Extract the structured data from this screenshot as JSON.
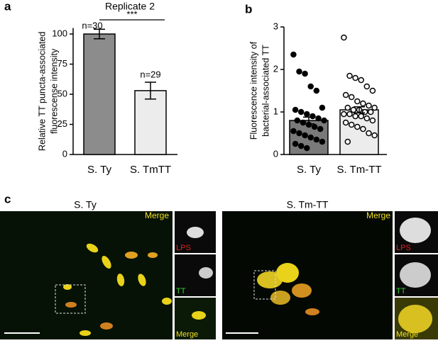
{
  "panel_labels": [
    "a",
    "b",
    "c"
  ],
  "chart_data": [
    {
      "type": "bar",
      "categories": [
        "S. Ty",
        "S. TmTT"
      ],
      "values": [
        100,
        53
      ],
      "errors": [
        4,
        7
      ],
      "colors": [
        "#8c8c8c",
        "#ececec"
      ],
      "ylim": [
        0,
        105
      ],
      "yticks": [
        0,
        25,
        50,
        75,
        100
      ],
      "ylabel_lines": [
        "Relative TT puncta-associated",
        "fluorescense intensity"
      ],
      "annotations": {
        "title": "Replicate 2",
        "significance": "***",
        "n_labels": [
          "n=30",
          "n=29"
        ]
      }
    },
    {
      "type": "bar",
      "categories": [
        "S. Ty",
        "S. Tm-TT"
      ],
      "values": [
        0.8,
        1.05
      ],
      "errors": [
        0.08,
        0.07
      ],
      "colors": [
        "#7a7a7a",
        "#ececec"
      ],
      "ylim": [
        0,
        3
      ],
      "yticks": [
        0,
        1,
        2,
        3
      ],
      "ylabel_lines": [
        "Fluorescence intensity of",
        "bacterial-associated TT"
      ],
      "point_colors": [
        "#000000",
        "#ffffff"
      ],
      "points": [
        [
          2.35,
          1.95,
          1.9,
          1.6,
          1.5,
          1.1,
          1.05,
          1.0,
          0.95,
          0.9,
          0.85,
          0.8,
          0.8,
          0.75,
          0.7,
          0.65,
          0.6,
          0.55,
          0.5,
          0.45,
          0.4,
          0.35,
          0.3,
          0.25,
          0.2,
          0.15
        ],
        [
          2.75,
          1.85,
          1.8,
          1.75,
          1.6,
          1.5,
          1.4,
          1.35,
          1.25,
          1.2,
          1.15,
          1.1,
          1.1,
          1.05,
          1.05,
          1.0,
          1.0,
          0.95,
          0.95,
          0.9,
          0.9,
          0.85,
          0.8,
          0.75,
          0.7,
          0.65,
          0.6,
          0.5,
          0.45,
          0.3
        ]
      ]
    }
  ],
  "panel_c": [
    {
      "title": "S. Ty",
      "merge": "Merge",
      "insets": [
        "LPS",
        "TT",
        "Merge"
      ]
    },
    {
      "title": "S. Tm-TT",
      "merge": "Merge",
      "insets": [
        "LPS",
        "TT",
        "Merge"
      ]
    }
  ]
}
